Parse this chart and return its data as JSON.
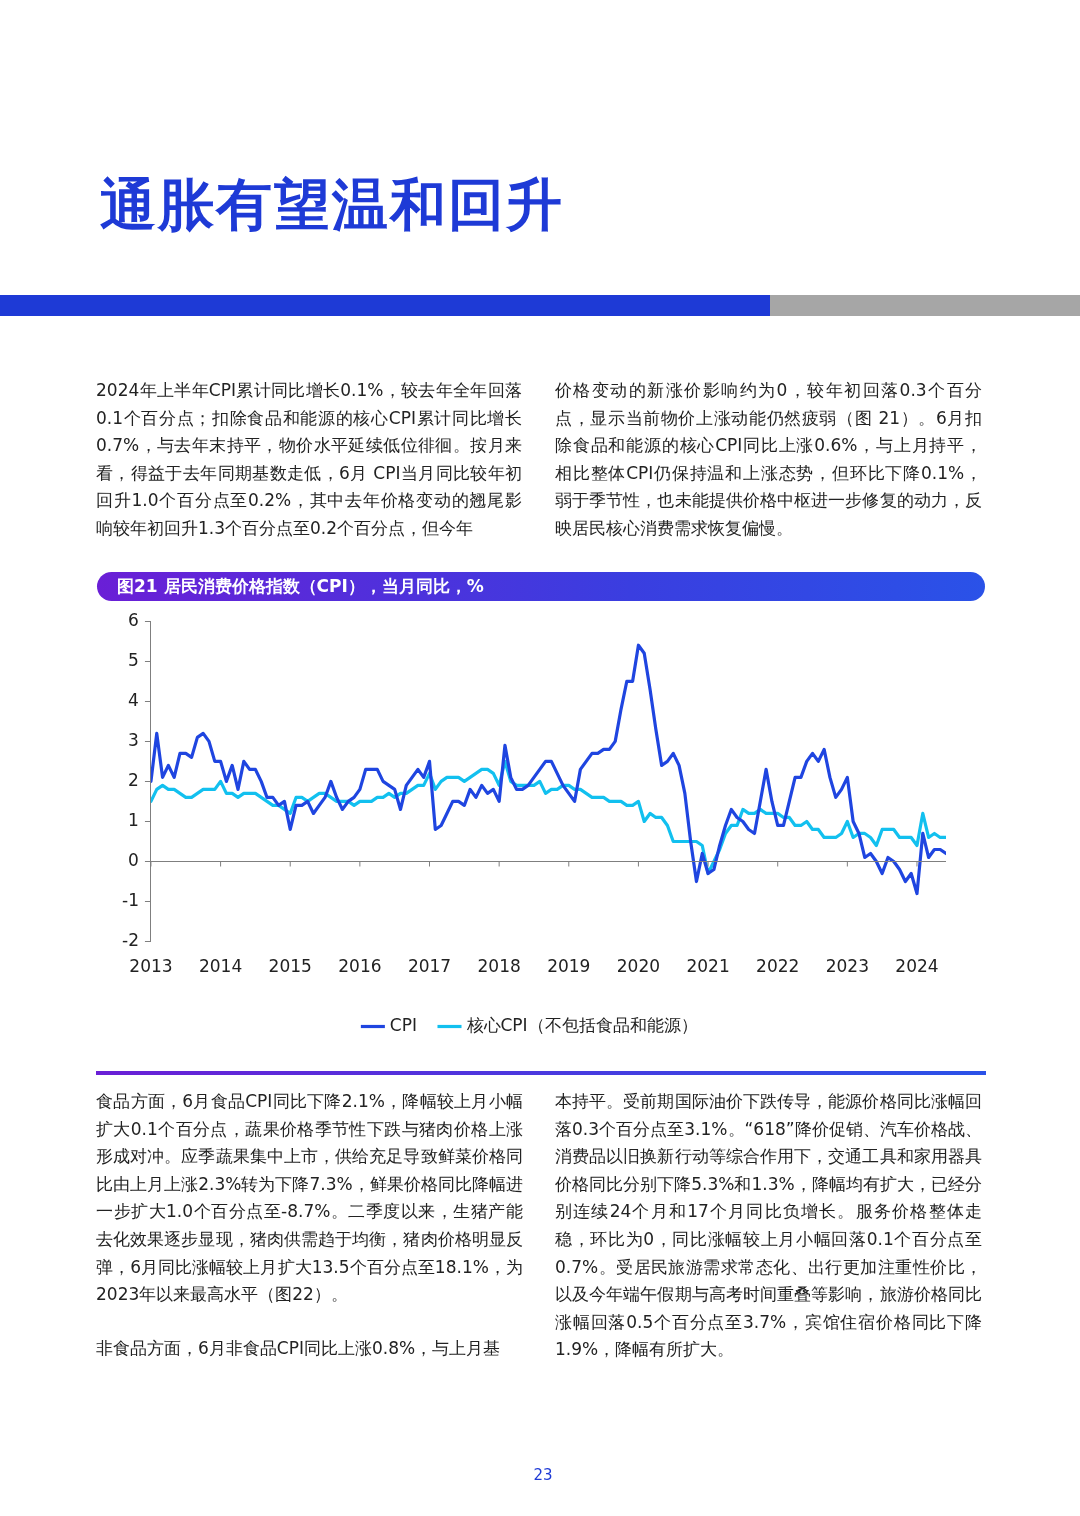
{
  "chart_data": {
    "type": "line",
    "title": "通胀有望温和回升",
    "subtitle": "图21 居民消费价格指数（CPI），当月同比，%",
    "x": [
      "2013-01",
      "2013-02",
      "2013-03",
      "2013-04",
      "2013-05",
      "2013-06",
      "2013-07",
      "2013-08",
      "2013-09",
      "2013-10",
      "2013-11",
      "2013-12",
      "2014-01",
      "2014-02",
      "2014-03",
      "2014-04",
      "2014-05",
      "2014-06",
      "2014-07",
      "2014-08",
      "2014-09",
      "2014-10",
      "2014-11",
      "2014-12",
      "2015-01",
      "2015-02",
      "2015-03",
      "2015-04",
      "2015-05",
      "2015-06",
      "2015-07",
      "2015-08",
      "2015-09",
      "2015-10",
      "2015-11",
      "2015-12",
      "2016-01",
      "2016-02",
      "2016-03",
      "2016-04",
      "2016-05",
      "2016-06",
      "2016-07",
      "2016-08",
      "2016-09",
      "2016-10",
      "2016-11",
      "2016-12",
      "2017-01",
      "2017-02",
      "2017-03",
      "2017-04",
      "2017-05",
      "2017-06",
      "2017-07",
      "2017-08",
      "2017-09",
      "2017-10",
      "2017-11",
      "2017-12",
      "2018-01",
      "2018-02",
      "2018-03",
      "2018-04",
      "2018-05",
      "2018-06",
      "2018-07",
      "2018-08",
      "2018-09",
      "2018-10",
      "2018-11",
      "2018-12",
      "2019-01",
      "2019-02",
      "2019-03",
      "2019-04",
      "2019-05",
      "2019-06",
      "2019-07",
      "2019-08",
      "2019-09",
      "2019-10",
      "2019-11",
      "2019-12",
      "2020-01",
      "2020-02",
      "2020-03",
      "2020-04",
      "2020-05",
      "2020-06",
      "2020-07",
      "2020-08",
      "2020-09",
      "2020-10",
      "2020-11",
      "2020-12",
      "2021-01",
      "2021-02",
      "2021-03",
      "2021-04",
      "2021-05",
      "2021-06",
      "2021-07",
      "2021-08",
      "2021-09",
      "2021-10",
      "2021-11",
      "2021-12",
      "2022-01",
      "2022-02",
      "2022-03",
      "2022-04",
      "2022-05",
      "2022-06",
      "2022-07",
      "2022-08",
      "2022-09",
      "2022-10",
      "2022-11",
      "2022-12",
      "2023-01",
      "2023-02",
      "2023-03",
      "2023-04",
      "2023-05",
      "2023-06",
      "2023-07",
      "2023-08",
      "2023-09",
      "2023-10",
      "2023-11",
      "2023-12",
      "2024-01",
      "2024-02",
      "2024-03",
      "2024-04",
      "2024-05",
      "2024-06"
    ],
    "series": [
      {
        "name": "CPI",
        "color": "#1f45e0",
        "values": [
          2.0,
          3.2,
          2.1,
          2.4,
          2.1,
          2.7,
          2.7,
          2.6,
          3.1,
          3.2,
          3.0,
          2.5,
          2.5,
          2.0,
          2.4,
          1.8,
          2.5,
          2.3,
          2.3,
          2.0,
          1.6,
          1.6,
          1.4,
          1.5,
          0.8,
          1.4,
          1.4,
          1.5,
          1.2,
          1.4,
          1.6,
          2.0,
          1.6,
          1.3,
          1.5,
          1.6,
          1.8,
          2.3,
          2.3,
          2.3,
          2.0,
          1.9,
          1.8,
          1.3,
          1.9,
          2.1,
          2.3,
          2.1,
          2.5,
          0.8,
          0.9,
          1.2,
          1.5,
          1.5,
          1.4,
          1.8,
          1.6,
          1.9,
          1.7,
          1.8,
          1.5,
          2.9,
          2.1,
          1.8,
          1.8,
          1.9,
          2.1,
          2.3,
          2.5,
          2.5,
          2.2,
          1.9,
          1.7,
          1.5,
          2.3,
          2.5,
          2.7,
          2.7,
          2.8,
          2.8,
          3.0,
          3.8,
          4.5,
          4.5,
          5.4,
          5.2,
          4.3,
          3.3,
          2.4,
          2.5,
          2.7,
          2.4,
          1.7,
          0.5,
          -0.5,
          0.2,
          -0.3,
          -0.2,
          0.4,
          0.9,
          1.3,
          1.1,
          1.0,
          0.8,
          0.7,
          1.5,
          2.3,
          1.5,
          0.9,
          0.9,
          1.5,
          2.1,
          2.1,
          2.5,
          2.7,
          2.5,
          2.8,
          2.1,
          1.6,
          1.8,
          2.1,
          1.0,
          0.7,
          0.1,
          0.2,
          0.0,
          -0.3,
          0.1,
          0.0,
          -0.2,
          -0.5,
          -0.3,
          -0.8,
          0.7,
          0.1,
          0.3,
          0.3,
          0.2
        ]
      },
      {
        "name": "核心CPI（不包括食品和能源）",
        "color": "#12c0ef",
        "values": [
          1.5,
          1.8,
          1.9,
          1.8,
          1.8,
          1.7,
          1.6,
          1.6,
          1.7,
          1.8,
          1.8,
          1.8,
          2.0,
          1.7,
          1.7,
          1.6,
          1.7,
          1.7,
          1.7,
          1.6,
          1.5,
          1.4,
          1.4,
          1.3,
          1.2,
          1.6,
          1.6,
          1.5,
          1.6,
          1.7,
          1.7,
          1.6,
          1.5,
          1.5,
          1.5,
          1.4,
          1.5,
          1.5,
          1.5,
          1.6,
          1.6,
          1.7,
          1.6,
          1.7,
          1.7,
          1.8,
          1.9,
          1.9,
          2.2,
          1.8,
          2.0,
          2.1,
          2.1,
          2.1,
          2.0,
          2.1,
          2.2,
          2.3,
          2.3,
          2.2,
          1.9,
          2.5,
          2.0,
          1.9,
          1.9,
          1.9,
          1.9,
          2.0,
          1.7,
          1.8,
          1.8,
          1.9,
          1.9,
          1.8,
          1.8,
          1.7,
          1.6,
          1.6,
          1.6,
          1.5,
          1.5,
          1.5,
          1.4,
          1.4,
          1.5,
          1.0,
          1.2,
          1.1,
          1.1,
          0.9,
          0.5,
          0.5,
          0.5,
          0.5,
          0.5,
          0.4,
          -0.3,
          0.0,
          0.3,
          0.7,
          0.9,
          0.9,
          1.3,
          1.2,
          1.2,
          1.3,
          1.2,
          1.2,
          1.2,
          1.1,
          1.1,
          0.9,
          0.9,
          1.0,
          0.8,
          0.8,
          0.6,
          0.6,
          0.6,
          0.7,
          1.0,
          0.6,
          0.7,
          0.7,
          0.6,
          0.4,
          0.8,
          0.8,
          0.8,
          0.6,
          0.6,
          0.6,
          0.4,
          1.2,
          0.6,
          0.7,
          0.6,
          0.6
        ]
      }
    ],
    "xlim": [
      "2013-01",
      "2024-06"
    ],
    "xticks": [
      "2013",
      "2014",
      "2015",
      "2016",
      "2017",
      "2018",
      "2019",
      "2020",
      "2021",
      "2022",
      "2023",
      "2024"
    ],
    "ylim": [
      -2,
      6
    ],
    "yticks": [
      -2,
      -1,
      0,
      1,
      2,
      3,
      4,
      5,
      6
    ],
    "legend": "bottom",
    "marker": "none",
    "line_style": "solid",
    "annotations": [
      "2024年上半年CPI累计同比增长0.1%，较去年全年回落0.1个百分点；扣除食品和能源的核心CPI累计同比增长0.7%，与去年末持平，物价水平延续低位徘徊。按月来看，得益于去年同期基数走低，6月 CPI当月同比较年初回升1.0个百分点至0.2%，其中去年价格变动的翘尾影响较年初回升1.3个百分点至0.2个百分点，但今年",
      "价格变动的新涨价影响约为0，较年初回落0.3个百分点，显示当前物价上涨动能仍然疲弱（图 21）。6月扣除食品和能源的核心CPI同比上涨0.6%，与上月持平，相比整体CPI仍保持温和上涨态势，但环比下降0.1%，弱于季节性，也未能提供价格中枢进一步修复的动力，反映居民核心消费需求恢复偏慢。",
      "食品方面，6月食品CPI同比下降2.1%，降幅较上月小幅扩大0.1个百分点，蔬果价格季节性下跌与猪肉价格上涨形成对冲。应季蔬果集中上市，供给充足导致鲜菜价格同比由上月上涨2.3%转为下降7.3%，鲜果价格同比降幅进一步扩大1.0个百分点至-8.7%。二季度以来，生猪产能去化效果逐步显现，猪肉供需趋于均衡，猪肉价格明显反弹，6月同比涨幅较上月扩大13.5个百分点至18.1%，为2023年以来最高水平（图22）。",
      "非食品方面，6月非食品CPI同比上涨0.8%，与上月基",
      "本持平。受前期国际油价下跌传导，能源价格同比涨幅回落0.3个百分点至3.1%。“618”降价促销、汽车价格战、消费品以旧换新行动等综合作用下，交通工具和家用器具价格同比分别下降5.3%和1.3%，降幅均有扩大，已经分别连续24个月和17个月同比负增长。服务价格整体走稳，环比为0，同比涨幅较上月小幅回落0.1个百分点至0.7%。受居民旅游需求常态化、出行更加注重性价比，以及今年端午假期与高考时间重叠等影响，旅游价格同比涨幅回落0.5个百分点至3.7%，宾馆住宿价格同比下降1.9%，降幅有所扩大。",
      "23"
    ]
  }
}
